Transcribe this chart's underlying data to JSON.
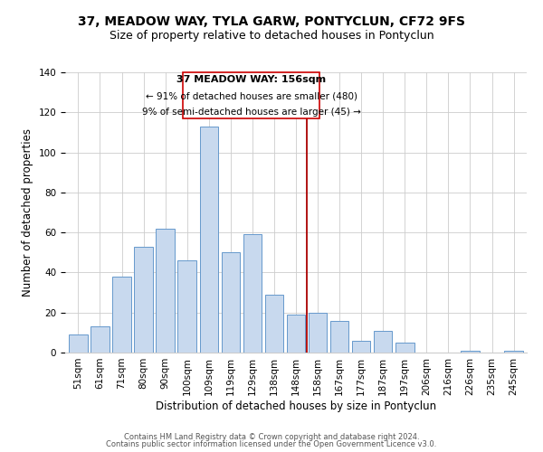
{
  "title": "37, MEADOW WAY, TYLA GARW, PONTYCLUN, CF72 9FS",
  "subtitle": "Size of property relative to detached houses in Pontyclun",
  "xlabel": "Distribution of detached houses by size in Pontyclun",
  "ylabel": "Number of detached properties",
  "categories": [
    "51sqm",
    "61sqm",
    "71sqm",
    "80sqm",
    "90sqm",
    "100sqm",
    "109sqm",
    "119sqm",
    "129sqm",
    "138sqm",
    "148sqm",
    "158sqm",
    "167sqm",
    "177sqm",
    "187sqm",
    "197sqm",
    "206sqm",
    "216sqm",
    "226sqm",
    "235sqm",
    "245sqm"
  ],
  "values": [
    9,
    13,
    38,
    53,
    62,
    46,
    113,
    50,
    59,
    29,
    19,
    20,
    16,
    6,
    11,
    5,
    0,
    0,
    1,
    0,
    1
  ],
  "bar_color": "#c8d9ee",
  "bar_edge_color": "#6699cc",
  "ylim": [
    0,
    140
  ],
  "yticks": [
    0,
    20,
    40,
    60,
    80,
    100,
    120,
    140
  ],
  "property_line_label": "37 MEADOW WAY: 156sqm",
  "annotation_line1": "← 91% of detached houses are smaller (480)",
  "annotation_line2": "9% of semi-detached houses are larger (45) →",
  "annotation_box_color": "#ffffff",
  "annotation_box_edge": "#cc0000",
  "property_line_color": "#aa0000",
  "footer1": "Contains HM Land Registry data © Crown copyright and database right 2024.",
  "footer2": "Contains public sector information licensed under the Open Government Licence v3.0.",
  "title_fontsize": 10,
  "subtitle_fontsize": 9,
  "xlabel_fontsize": 8.5,
  "ylabel_fontsize": 8.5,
  "tick_fontsize": 7.5,
  "annotation_title_fontsize": 8,
  "annotation_text_fontsize": 7.5
}
